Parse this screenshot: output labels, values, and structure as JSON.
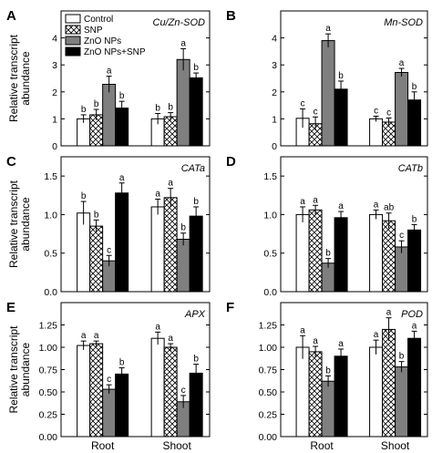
{
  "figure": {
    "ylabel": "Relative transcript\nabundance",
    "categories": [
      "Root",
      "Shoot"
    ],
    "legend": [
      {
        "name": "Control",
        "fill": "white"
      },
      {
        "name": "SNP",
        "fill": "hatch"
      },
      {
        "name": "ZnO NPs",
        "fill": "gray"
      },
      {
        "name": "ZnO NPs+SNP",
        "fill": "black"
      }
    ]
  },
  "colors": {
    "control": "#ffffff",
    "zno": "#7f7f7f",
    "znosnp": "#000000",
    "hatch": "#000000",
    "axis": "#000000"
  },
  "chart_data": [
    {
      "type": "bar",
      "panel": "A",
      "gene": "Cu/Zn-SOD",
      "categories": [
        "Root",
        "Shoot"
      ],
      "ylim": [
        0,
        5
      ],
      "yticks": [
        0,
        1,
        2,
        3,
        4
      ],
      "series": [
        {
          "name": "Control",
          "values": [
            1.0,
            1.0
          ],
          "errors": [
            0.15,
            0.2
          ],
          "labels": [
            "b",
            "b"
          ]
        },
        {
          "name": "SNP",
          "values": [
            1.15,
            1.08
          ],
          "errors": [
            0.2,
            0.15
          ],
          "labels": [
            "b",
            "b"
          ]
        },
        {
          "name": "ZnO NPs",
          "values": [
            2.28,
            3.2
          ],
          "errors": [
            0.3,
            0.4
          ],
          "labels": [
            "a",
            "a"
          ]
        },
        {
          "name": "ZnO NPs+SNP",
          "values": [
            1.4,
            2.52
          ],
          "errors": [
            0.25,
            0.18
          ],
          "labels": [
            "b",
            "b"
          ]
        }
      ]
    },
    {
      "type": "bar",
      "panel": "B",
      "gene": "Mn-SOD",
      "categories": [
        "Root",
        "Shoot"
      ],
      "ylim": [
        0,
        5
      ],
      "yticks": [
        0,
        1,
        2,
        3,
        4
      ],
      "series": [
        {
          "name": "Control",
          "values": [
            1.02,
            1.0
          ],
          "errors": [
            0.35,
            0.1
          ],
          "labels": [
            "c",
            "c"
          ]
        },
        {
          "name": "SNP",
          "values": [
            0.82,
            0.88
          ],
          "errors": [
            0.25,
            0.15
          ],
          "labels": [
            "c",
            "c"
          ]
        },
        {
          "name": "ZnO NPs",
          "values": [
            3.9,
            2.72
          ],
          "errors": [
            0.25,
            0.15
          ],
          "labels": [
            "a",
            "a"
          ]
        },
        {
          "name": "ZnO NPs+SNP",
          "values": [
            2.1,
            1.7
          ],
          "errors": [
            0.3,
            0.3
          ],
          "labels": [
            "b",
            "b"
          ]
        }
      ]
    },
    {
      "type": "bar",
      "panel": "C",
      "gene": "CATa",
      "categories": [
        "Root",
        "Shoot"
      ],
      "ylim": [
        0,
        1.75
      ],
      "yticks": [
        0.0,
        0.5,
        1.0,
        1.5
      ],
      "series": [
        {
          "name": "Control",
          "values": [
            1.02,
            1.1
          ],
          "errors": [
            0.15,
            0.1
          ],
          "labels": [
            "b",
            "a"
          ]
        },
        {
          "name": "SNP",
          "values": [
            0.85,
            1.22
          ],
          "errors": [
            0.08,
            0.12
          ],
          "labels": [
            "b",
            "a"
          ]
        },
        {
          "name": "ZnO NPs",
          "values": [
            0.4,
            0.68
          ],
          "errors": [
            0.07,
            0.08
          ],
          "labels": [
            "c",
            "b"
          ]
        },
        {
          "name": "ZnO NPs+SNP",
          "values": [
            1.28,
            0.98
          ],
          "errors": [
            0.13,
            0.12
          ],
          "labels": [
            "a",
            "b"
          ]
        }
      ]
    },
    {
      "type": "bar",
      "panel": "D",
      "gene": "CATb",
      "categories": [
        "Root",
        "Shoot"
      ],
      "ylim": [
        0,
        1.75
      ],
      "yticks": [
        0.0,
        0.5,
        1.0,
        1.5
      ],
      "series": [
        {
          "name": "Control",
          "values": [
            1.0,
            1.0
          ],
          "errors": [
            0.1,
            0.06
          ],
          "labels": [
            "a",
            "a"
          ]
        },
        {
          "name": "SNP",
          "values": [
            1.06,
            0.92
          ],
          "errors": [
            0.06,
            0.1
          ],
          "labels": [
            "a",
            "ab"
          ]
        },
        {
          "name": "ZnO NPs",
          "values": [
            0.37,
            0.58
          ],
          "errors": [
            0.06,
            0.08
          ],
          "labels": [
            "b",
            "c"
          ]
        },
        {
          "name": "ZnO NPs+SNP",
          "values": [
            0.96,
            0.8
          ],
          "errors": [
            0.08,
            0.07
          ],
          "labels": [
            "a",
            "b"
          ]
        }
      ]
    },
    {
      "type": "bar",
      "panel": "E",
      "gene": "APX",
      "categories": [
        "Root",
        "Shoot"
      ],
      "ylim": [
        0,
        1.5
      ],
      "yticks": [
        0.0,
        0.25,
        0.5,
        0.75,
        1.0,
        1.25
      ],
      "ytick_labels": [
        "0.00",
        "0.25",
        "0.50",
        "0.75",
        "1.00",
        "1.25"
      ],
      "series": [
        {
          "name": "Control",
          "values": [
            1.02,
            1.1
          ],
          "errors": [
            0.05,
            0.07
          ],
          "labels": [
            "a",
            "a"
          ]
        },
        {
          "name": "SNP",
          "values": [
            1.04,
            1.0
          ],
          "errors": [
            0.03,
            0.04
          ],
          "labels": [
            "a",
            "a"
          ]
        },
        {
          "name": "ZnO NPs",
          "values": [
            0.53,
            0.39
          ],
          "errors": [
            0.05,
            0.07
          ],
          "labels": [
            "c",
            "c"
          ]
        },
        {
          "name": "ZnO NPs+SNP",
          "values": [
            0.7,
            0.71
          ],
          "errors": [
            0.07,
            0.1
          ],
          "labels": [
            "b",
            "b"
          ]
        }
      ]
    },
    {
      "type": "bar",
      "panel": "F",
      "gene": "POD",
      "categories": [
        "Root",
        "Shoot"
      ],
      "ylim": [
        0,
        1.5
      ],
      "yticks": [
        0.0,
        0.25,
        0.5,
        0.75,
        1.0,
        1.25
      ],
      "ytick_labels": [
        "0.00",
        "0.25",
        "0.50",
        "0.75",
        "1.00",
        "1.25"
      ],
      "series": [
        {
          "name": "Control",
          "values": [
            1.0,
            1.0
          ],
          "errors": [
            0.13,
            0.08
          ],
          "labels": [
            "a",
            "a"
          ]
        },
        {
          "name": "SNP",
          "values": [
            0.95,
            1.2
          ],
          "errors": [
            0.06,
            0.13
          ],
          "labels": [
            "a",
            "a"
          ]
        },
        {
          "name": "ZnO NPs",
          "values": [
            0.62,
            0.78
          ],
          "errors": [
            0.06,
            0.06
          ],
          "labels": [
            "b",
            "b"
          ]
        },
        {
          "name": "ZnO NPs+SNP",
          "values": [
            0.9,
            1.1
          ],
          "errors": [
            0.08,
            0.08
          ],
          "labels": [
            "a",
            "a"
          ]
        }
      ]
    }
  ]
}
